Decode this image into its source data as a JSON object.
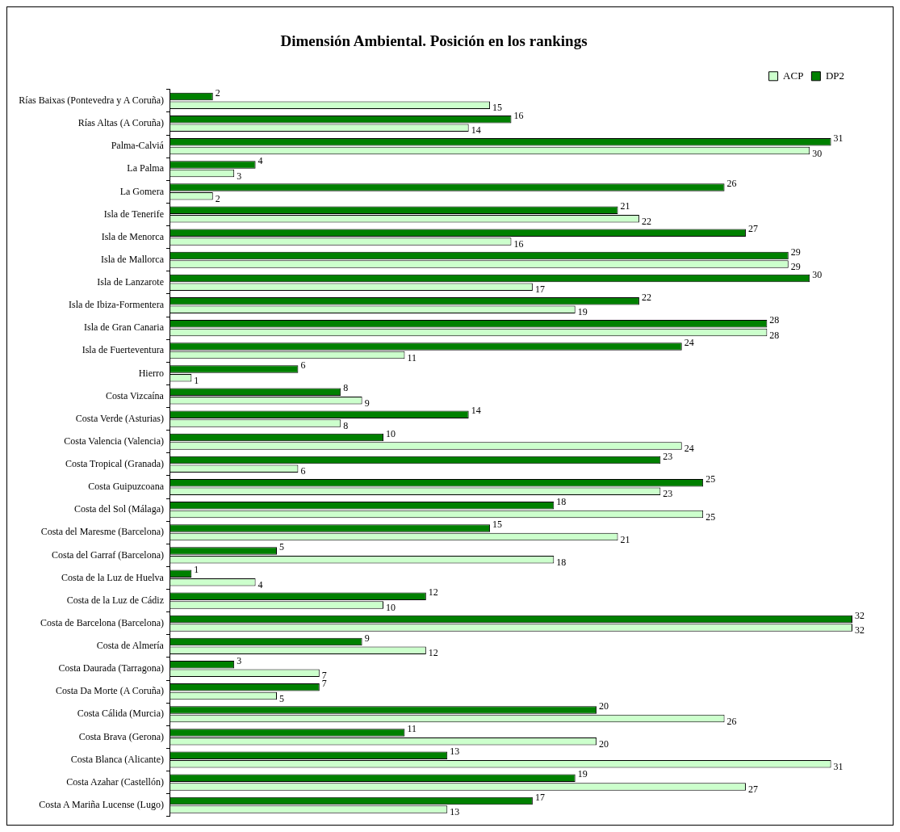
{
  "chart_data": {
    "type": "bar",
    "orientation": "horizontal",
    "title": "Dimensión Ambiental. Posición en los rankings",
    "categories": [
      "Rías Baixas (Pontevedra y A Coruña)",
      "Rías Altas (A Coruña)",
      "Palma-Calviá",
      "La Palma",
      "La Gomera",
      "Isla de Tenerife",
      "Isla de Menorca",
      "Isla de Mallorca",
      "Isla de Lanzarote",
      "Isla de Ibiza-Formentera",
      "Isla de Gran Canaria",
      "Isla de Fuerteventura",
      "Hierro",
      "Costa Vizcaína",
      "Costa Verde (Asturias)",
      "Costa Valencia (Valencia)",
      "Costa Tropical (Granada)",
      "Costa Guipuzcoana",
      "Costa del Sol (Málaga)",
      "Costa del Maresme (Barcelona)",
      "Costa del Garraf (Barcelona)",
      "Costa de la Luz de Huelva",
      "Costa de la Luz de Cádiz",
      "Costa de Barcelona (Barcelona)",
      "Costa de Almería",
      "Costa Daurada (Tarragona)",
      "Costa Da Morte (A Coruña)",
      "Costa Cálida (Murcia)",
      "Costa Brava (Gerona)",
      "Costa Blanca (Alicante)",
      "Costa Azahar (Castellón)",
      "Costa A Mariña Lucense (Lugo)"
    ],
    "series": [
      {
        "name": "ACP",
        "color": "#ccffcc",
        "values": [
          15,
          14,
          30,
          3,
          2,
          22,
          16,
          29,
          17,
          19,
          28,
          11,
          1,
          9,
          8,
          24,
          6,
          23,
          25,
          21,
          18,
          4,
          10,
          32,
          12,
          7,
          5,
          26,
          20,
          31,
          27,
          13
        ]
      },
      {
        "name": "DP2",
        "color": "#008000",
        "values": [
          2,
          16,
          31,
          4,
          26,
          21,
          27,
          29,
          30,
          22,
          28,
          24,
          6,
          8,
          14,
          10,
          23,
          25,
          18,
          15,
          5,
          1,
          12,
          32,
          9,
          3,
          7,
          20,
          11,
          13,
          19,
          17
        ]
      }
    ],
    "xlim": [
      0,
      32
    ],
    "tick_labels": "y",
    "legend": "top right",
    "data_labels": true
  }
}
